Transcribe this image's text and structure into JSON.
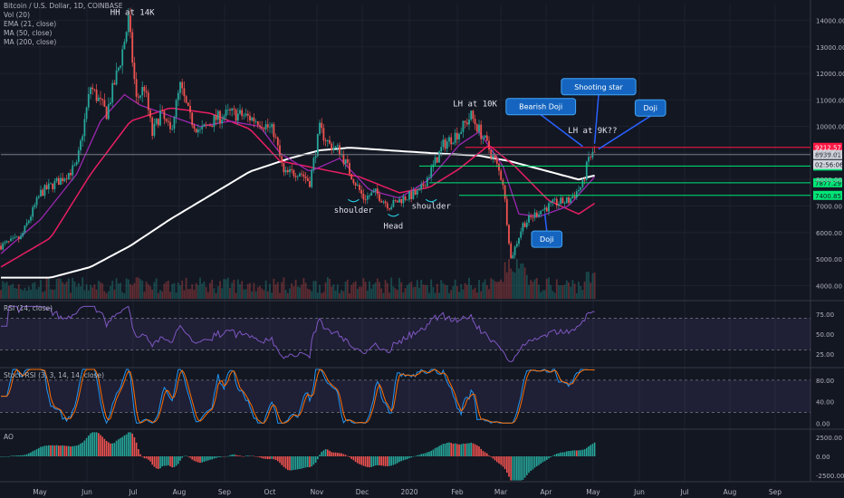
{
  "header": {
    "title": "Bitcoin / U.S. Dollar, 1D, COINBASE",
    "indicators": [
      "Vol (20)",
      "EMA (21, close)",
      "MA (50, close)",
      "MA (200, close)"
    ]
  },
  "panes": {
    "rsi_label": "RSI (14, close)",
    "stoch_label": "Stoch RSI (3, 3, 14, 14, close)",
    "ao_label": "AO"
  },
  "colors": {
    "background": "#131722",
    "up": "#26a69a",
    "down": "#ef5350",
    "ema": "#9c27b0",
    "ma50": "#e91e63",
    "ma200": "#ffffff",
    "resistance": "#ff1744",
    "support": "#00e676",
    "callout": "#1565c0"
  },
  "chart_data": {
    "type": "candlestick",
    "x_axis_labels": [
      "May",
      "Jun",
      "Jul",
      "Aug",
      "Sep",
      "Oct",
      "Nov",
      "Dec",
      "2020",
      "Feb",
      "Mar",
      "Apr",
      "May",
      "Jun",
      "Jul",
      "Aug",
      "Sep"
    ],
    "price_axis_ticks": [
      "14000.00",
      "13000.00",
      "12000.00",
      "11000.00",
      "10000.00",
      "9000.00",
      "8000.00",
      "7000.00",
      "6000.00",
      "5000.00",
      "4000.00"
    ],
    "price_range": [
      3500,
      14600
    ],
    "price_path": [
      [
        0,
        5500
      ],
      [
        10,
        5800
      ],
      [
        20,
        7500
      ],
      [
        30,
        8000
      ],
      [
        38,
        8500
      ],
      [
        45,
        11500
      ],
      [
        53,
        10500
      ],
      [
        60,
        12500
      ],
      [
        64,
        14000
      ],
      [
        68,
        11000
      ],
      [
        72,
        11500
      ],
      [
        76,
        9700
      ],
      [
        80,
        10500
      ],
      [
        85,
        9800
      ],
      [
        90,
        11500
      ],
      [
        95,
        10300
      ],
      [
        100,
        9800
      ],
      [
        108,
        10300
      ],
      [
        115,
        10500
      ],
      [
        122,
        10400
      ],
      [
        130,
        10200
      ],
      [
        137,
        9800
      ],
      [
        142,
        8200
      ],
      [
        150,
        8300
      ],
      [
        155,
        7900
      ],
      [
        160,
        9900
      ],
      [
        165,
        9300
      ],
      [
        170,
        9100
      ],
      [
        175,
        8300
      ],
      [
        182,
        7300
      ],
      [
        188,
        7500
      ],
      [
        195,
        7000
      ],
      [
        202,
        7300
      ],
      [
        210,
        7500
      ],
      [
        217,
        8500
      ],
      [
        222,
        9300
      ],
      [
        230,
        9800
      ],
      [
        236,
        10400
      ],
      [
        242,
        9600
      ],
      [
        248,
        8700
      ],
      [
        252,
        7900
      ],
      [
        256,
        5000
      ],
      [
        262,
        6300
      ],
      [
        270,
        6800
      ],
      [
        278,
        7100
      ],
      [
        285,
        7200
      ],
      [
        292,
        7800
      ],
      [
        295,
        8800
      ],
      [
        298,
        9000
      ]
    ],
    "ema21": [
      [
        0,
        5200
      ],
      [
        20,
        6500
      ],
      [
        38,
        8200
      ],
      [
        50,
        10200
      ],
      [
        62,
        11200
      ],
      [
        70,
        10800
      ],
      [
        85,
        10400
      ],
      [
        100,
        10000
      ],
      [
        115,
        10200
      ],
      [
        130,
        10000
      ],
      [
        140,
        9000
      ],
      [
        155,
        8300
      ],
      [
        170,
        8800
      ],
      [
        185,
        7600
      ],
      [
        200,
        7300
      ],
      [
        215,
        8000
      ],
      [
        230,
        9300
      ],
      [
        240,
        9800
      ],
      [
        252,
        8500
      ],
      [
        260,
        6700
      ],
      [
        270,
        6600
      ],
      [
        285,
        7000
      ],
      [
        298,
        8100
      ]
    ],
    "ma50": [
      [
        0,
        4700
      ],
      [
        25,
        5800
      ],
      [
        45,
        8200
      ],
      [
        65,
        10200
      ],
      [
        85,
        10700
      ],
      [
        105,
        10500
      ],
      [
        125,
        9900
      ],
      [
        140,
        8700
      ],
      [
        160,
        8400
      ],
      [
        180,
        8100
      ],
      [
        200,
        7500
      ],
      [
        215,
        7700
      ],
      [
        230,
        8400
      ],
      [
        245,
        9300
      ],
      [
        258,
        8500
      ],
      [
        275,
        7200
      ],
      [
        290,
        6700
      ],
      [
        298,
        7100
      ]
    ],
    "ma200": [
      [
        0,
        4300
      ],
      [
        25,
        4300
      ],
      [
        45,
        4700
      ],
      [
        65,
        5500
      ],
      [
        85,
        6500
      ],
      [
        105,
        7400
      ],
      [
        125,
        8300
      ],
      [
        145,
        8800
      ],
      [
        160,
        9100
      ],
      [
        175,
        9200
      ],
      [
        195,
        9100
      ],
      [
        215,
        9000
      ],
      [
        240,
        8900
      ],
      [
        255,
        8700
      ],
      [
        275,
        8300
      ],
      [
        290,
        8000
      ],
      [
        298,
        8150
      ]
    ],
    "horizontal_levels": [
      {
        "price": 9212.57,
        "label": "9212.57",
        "color": "#ff1744",
        "from_day": 233
      },
      {
        "price": 8939.01,
        "label": "8939.01",
        "color": "#2a2e39",
        "from_day": 0
      },
      {
        "price": 8508.45,
        "label": "8508.45",
        "color": "#00e676",
        "from_day": 210
      },
      {
        "price": 7877.29,
        "label": "7877.29",
        "color": "#00e676",
        "from_day": 215
      },
      {
        "price": 7400.85,
        "label": "7400.85",
        "color": "#00e676",
        "from_day": 230
      }
    ],
    "timer_label": "02:56:06",
    "annotations": [
      {
        "text": "HH at 14K",
        "day": 66,
        "price": 14200,
        "type": "text"
      },
      {
        "text": "LH at 10K",
        "day": 238,
        "price": 10750,
        "type": "text"
      },
      {
        "text": "LH at 9K??",
        "day": 297,
        "price": 9750,
        "type": "text"
      },
      {
        "text": "shoulder",
        "day": 177,
        "price": 6750,
        "type": "text"
      },
      {
        "text": "Head",
        "day": 197,
        "price": 6150,
        "type": "text"
      },
      {
        "text": "shoulder",
        "day": 216,
        "price": 6900,
        "type": "text"
      }
    ],
    "callouts": [
      {
        "text": "Bearish Doji",
        "day": 271,
        "price": 10750,
        "target_day": 292,
        "target_price": 9250
      },
      {
        "text": "Shooting star",
        "day": 300,
        "price": 11500,
        "target_day": 298,
        "target_price": 9350
      },
      {
        "text": "Doji",
        "day": 326,
        "price": 10700,
        "target_day": 300,
        "target_price": 9150
      },
      {
        "text": "Doji",
        "day": 274,
        "price": 5750,
        "target_day": 273,
        "target_price": 6700
      }
    ],
    "rsi": {
      "ticks": [
        "75.00",
        "50.00",
        "25.00"
      ],
      "range": [
        10,
        90
      ],
      "upper": 70,
      "lower": 30
    },
    "stoch_rsi": {
      "ticks": [
        "80.00",
        "40.00",
        "0.00"
      ],
      "range": [
        -8,
        100
      ],
      "upper": 80,
      "lower": 20
    },
    "ao": {
      "ticks": [
        "2500.00",
        "0.00",
        "-2500.00"
      ],
      "range": [
        -3300,
        3300
      ]
    }
  }
}
